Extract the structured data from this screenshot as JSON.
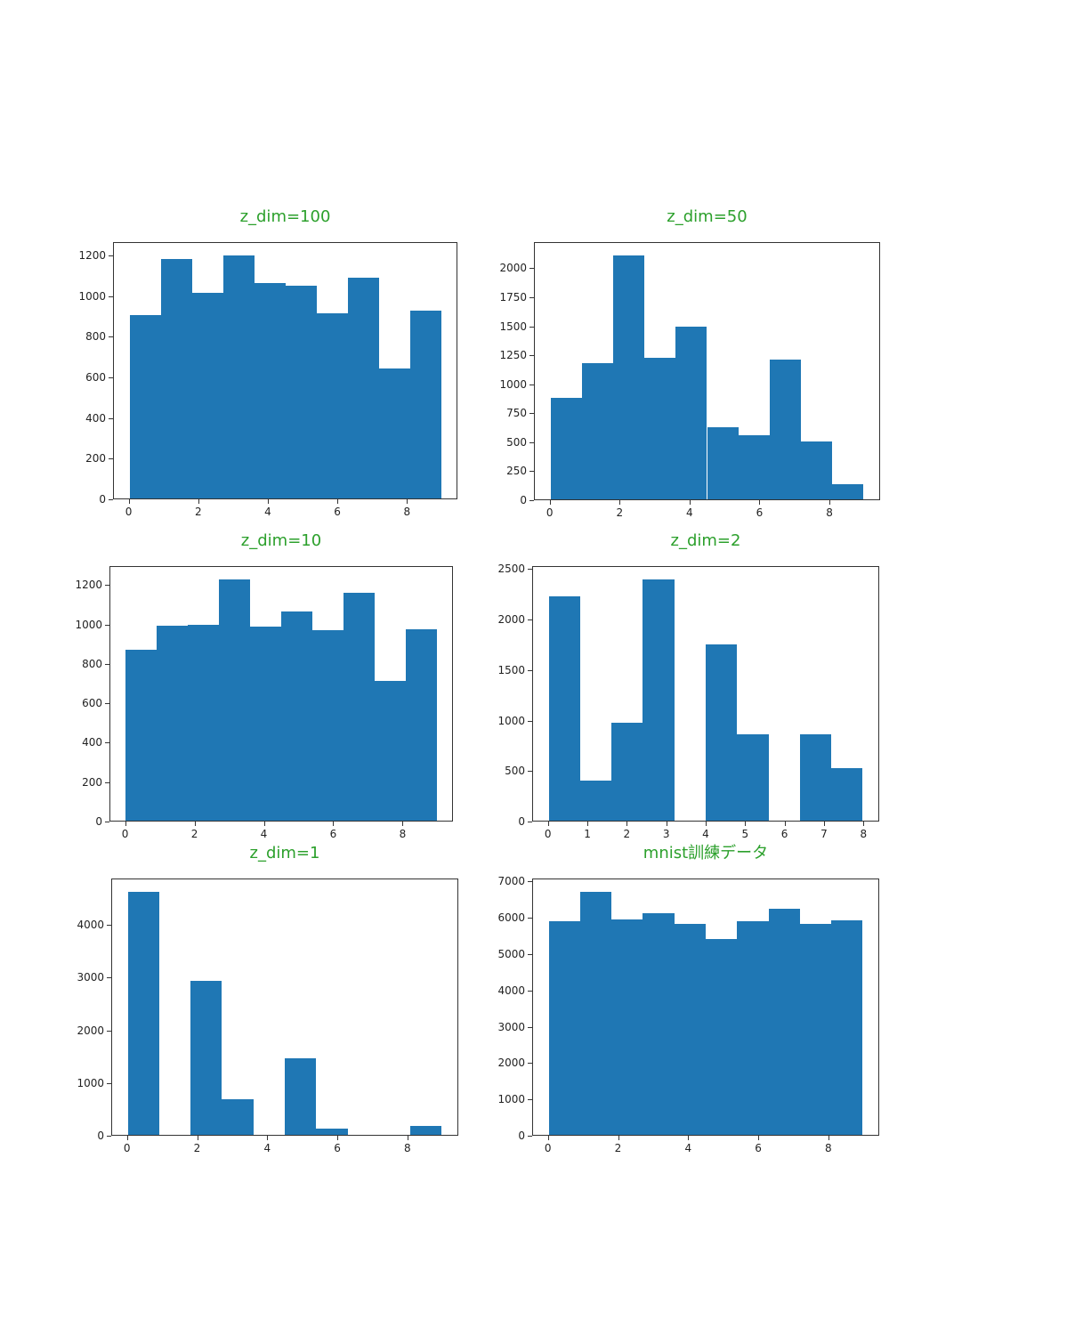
{
  "figure": {
    "background": "#ffffff",
    "bar_color": "#1f77b4",
    "title_color": "#2ca02c",
    "axis_color": "#333333",
    "tick_label_color": "#222222"
  },
  "chart_data": [
    {
      "type": "bar",
      "title": "z_dim=100",
      "bin_start": 0,
      "bin_width": 0.9,
      "values": [
        910,
        1185,
        1020,
        1205,
        1065,
        1055,
        915,
        1095,
        645,
        930
      ],
      "xlim": [
        -0.45,
        9.45
      ],
      "ylim": [
        0,
        1265
      ],
      "x_ticks": [
        0,
        2,
        4,
        6,
        8
      ],
      "y_ticks": [
        0,
        200,
        400,
        600,
        800,
        1000,
        1200
      ],
      "grid": false,
      "legend": "none"
    },
    {
      "type": "bar",
      "title": "z_dim=50",
      "bin_start": 0,
      "bin_width": 0.9,
      "values": [
        880,
        1185,
        2120,
        1230,
        1500,
        625,
        560,
        1210,
        505,
        135
      ],
      "xlim": [
        -0.45,
        9.45
      ],
      "ylim": [
        0,
        2226
      ],
      "x_ticks": [
        0,
        2,
        4,
        6,
        8
      ],
      "y_ticks": [
        0,
        250,
        500,
        750,
        1000,
        1250,
        1500,
        1750,
        2000
      ],
      "grid": false,
      "legend": "none"
    },
    {
      "type": "bar",
      "title": "z_dim=10",
      "bin_start": 0,
      "bin_width": 0.9,
      "values": [
        875,
        995,
        1000,
        1235,
        990,
        1070,
        975,
        1165,
        715,
        980
      ],
      "xlim": [
        -0.45,
        9.45
      ],
      "ylim": [
        0,
        1297
      ],
      "x_ticks": [
        0,
        2,
        4,
        6,
        8
      ],
      "y_ticks": [
        0,
        200,
        400,
        600,
        800,
        1000,
        1200
      ],
      "grid": false,
      "legend": "none"
    },
    {
      "type": "bar",
      "title": "z_dim=2",
      "bin_start": 0,
      "bin_width": 0.8,
      "values": [
        2240,
        400,
        975,
        2410,
        0,
        1755,
        860,
        0,
        865,
        520
      ],
      "xlim": [
        -0.4,
        8.4
      ],
      "ylim": [
        0,
        2530
      ],
      "x_ticks": [
        0,
        1,
        2,
        3,
        4,
        5,
        6,
        7,
        8
      ],
      "y_ticks": [
        0,
        500,
        1000,
        1500,
        2000,
        2500
      ],
      "grid": false,
      "legend": "none"
    },
    {
      "type": "bar",
      "title": "z_dim=1",
      "bin_start": 0,
      "bin_width": 0.9,
      "values": [
        4650,
        0,
        2935,
        680,
        0,
        1470,
        125,
        0,
        0,
        175
      ],
      "xlim": [
        -0.45,
        9.45
      ],
      "ylim": [
        0,
        4880
      ],
      "x_ticks": [
        0,
        2,
        4,
        6,
        8
      ],
      "y_ticks": [
        0,
        1000,
        2000,
        3000,
        4000
      ],
      "grid": false,
      "legend": "none"
    },
    {
      "type": "bar",
      "title": "mnist訓練データ",
      "bin_start": 0,
      "bin_width": 0.9,
      "values": [
        5923,
        6742,
        5958,
        6131,
        5842,
        5421,
        5918,
        6265,
        5851,
        5949
      ],
      "xlim": [
        -0.45,
        9.45
      ],
      "ylim": [
        0,
        7080
      ],
      "x_ticks": [
        0,
        2,
        4,
        6,
        8
      ],
      "y_ticks": [
        0,
        1000,
        2000,
        3000,
        4000,
        5000,
        6000,
        7000
      ],
      "grid": false,
      "legend": "none"
    }
  ]
}
